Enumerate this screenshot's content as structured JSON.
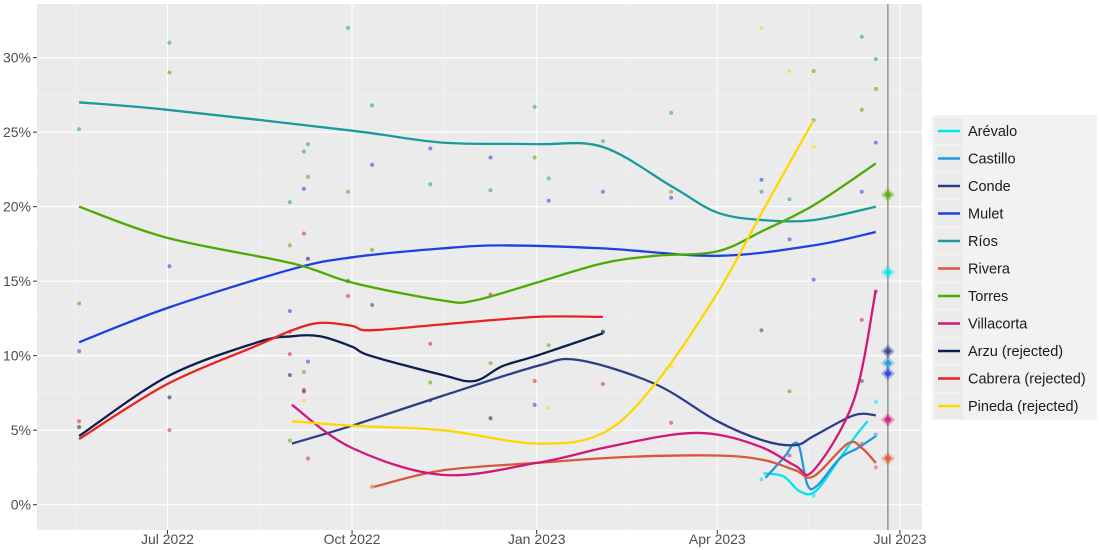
{
  "chart_data": {
    "type": "line",
    "title": "",
    "xlabel": "",
    "ylabel": "",
    "xlim": [
      "2022-04-27",
      "2023-07-12"
    ],
    "ylim": [
      -1.7,
      33.6
    ],
    "x_ticks": [
      {
        "date": "2022-07-01",
        "label": "Jul 2022"
      },
      {
        "date": "2022-10-01",
        "label": "Oct 2022"
      },
      {
        "date": "2023-01-01",
        "label": "Jan 2023"
      },
      {
        "date": "2023-04-01",
        "label": "Apr 2023"
      },
      {
        "date": "2023-07-01",
        "label": "Jul 2023"
      }
    ],
    "y_ticks": [
      {
        "value": 0,
        "label": "0%"
      },
      {
        "value": 5,
        "label": "5%"
      },
      {
        "value": 10,
        "label": "10%"
      },
      {
        "value": 15,
        "label": "15%"
      },
      {
        "value": 20,
        "label": "20%"
      },
      {
        "value": 25,
        "label": "25%"
      },
      {
        "value": 30,
        "label": "30%"
      }
    ],
    "grid": true,
    "background": "#ebebeb",
    "legend_position": "right",
    "vertical_line_date": "2023-06-25",
    "series": [
      {
        "name": "Arévalo",
        "color": "#00e5ee",
        "trend": [
          [
            "2023-04-24",
            2.1
          ],
          [
            "2023-05-04",
            1.9
          ],
          [
            "2023-05-12",
            0.9
          ],
          [
            "2023-05-20",
            0.9
          ],
          [
            "2023-06-01",
            3.1
          ],
          [
            "2023-06-10",
            4.8
          ],
          [
            "2023-06-15",
            5.6
          ]
        ],
        "points": [
          [
            "2023-04-23",
            1.7
          ],
          [
            "2023-05-19",
            0.6
          ],
          [
            "2023-06-19",
            6.9
          ]
        ],
        "result": 15.6
      },
      {
        "name": "Castillo",
        "color": "#1e9ae0",
        "trend": [
          [
            "2023-04-25",
            1.8
          ],
          [
            "2023-05-05",
            3.3
          ],
          [
            "2023-05-09",
            4.1
          ],
          [
            "2023-05-12",
            3.8
          ],
          [
            "2023-05-16",
            1.3
          ],
          [
            "2023-05-21",
            1.3
          ],
          [
            "2023-06-01",
            3.1
          ],
          [
            "2023-06-10",
            3.8
          ],
          [
            "2023-06-19",
            4.6
          ]
        ],
        "points": [
          [
            "2023-06-19",
            4.7
          ]
        ],
        "result": 9.5
      },
      {
        "name": "Conde",
        "color": "#2e3d8a",
        "trend": [
          [
            "2022-09-01",
            4.1
          ],
          [
            "2022-10-01",
            5.3
          ],
          [
            "2022-11-15",
            7.3
          ],
          [
            "2023-01-01",
            9.3
          ],
          [
            "2023-01-22",
            9.7
          ],
          [
            "2023-03-01",
            8.1
          ],
          [
            "2023-04-01",
            5.6
          ],
          [
            "2023-04-24",
            4.3
          ],
          [
            "2023-05-10",
            4.0
          ],
          [
            "2023-05-19",
            4.6
          ],
          [
            "2023-06-08",
            6.0
          ],
          [
            "2023-06-19",
            6.0
          ]
        ],
        "points": [
          [
            "2022-10-11",
            13.4
          ],
          [
            "2022-11-09",
            7.0
          ],
          [
            "2023-04-23",
            11.7
          ],
          [
            "2023-06-12",
            8.3
          ]
        ],
        "result": 10.3
      },
      {
        "name": "Mulet",
        "color": "#1f3fe0",
        "trend": [
          [
            "2022-05-18",
            10.9
          ],
          [
            "2022-07-01",
            13.2
          ],
          [
            "2022-09-01",
            15.8
          ],
          [
            "2022-10-01",
            16.6
          ],
          [
            "2022-11-15",
            17.2
          ],
          [
            "2022-12-15",
            17.4
          ],
          [
            "2023-02-03",
            17.2
          ],
          [
            "2023-04-01",
            16.7
          ],
          [
            "2023-05-19",
            17.4
          ],
          [
            "2023-06-19",
            18.3
          ]
        ],
        "points": [
          [
            "2022-05-18",
            10.3
          ],
          [
            "2022-07-02",
            16.0
          ],
          [
            "2022-08-31",
            13.0
          ],
          [
            "2022-09-07",
            21.2
          ],
          [
            "2022-09-09",
            9.6
          ],
          [
            "2022-10-11",
            22.8
          ],
          [
            "2022-11-09",
            23.9
          ],
          [
            "2022-12-09",
            23.3
          ],
          [
            "2022-12-31",
            6.7
          ],
          [
            "2023-01-07",
            20.4
          ],
          [
            "2023-02-03",
            21.0
          ],
          [
            "2023-03-09",
            20.6
          ],
          [
            "2023-04-23",
            21.8
          ],
          [
            "2023-05-07",
            17.8
          ],
          [
            "2023-05-19",
            15.1
          ],
          [
            "2023-06-12",
            21.0
          ],
          [
            "2023-06-19",
            24.3
          ]
        ],
        "result": 8.8
      },
      {
        "name": "Ríos",
        "color": "#1a9a9a",
        "trend": [
          [
            "2022-05-18",
            27.0
          ],
          [
            "2022-07-01",
            26.5
          ],
          [
            "2022-10-01",
            25.1
          ],
          [
            "2022-11-15",
            24.3
          ],
          [
            "2023-01-01",
            24.2
          ],
          [
            "2023-02-03",
            24.0
          ],
          [
            "2023-03-10",
            21.3
          ],
          [
            "2023-04-01",
            19.6
          ],
          [
            "2023-04-24",
            19.1
          ],
          [
            "2023-05-19",
            19.1
          ],
          [
            "2023-06-19",
            20.0
          ]
        ],
        "points": [
          [
            "2022-05-18",
            25.2
          ],
          [
            "2022-07-02",
            31.0
          ],
          [
            "2022-08-31",
            20.3
          ],
          [
            "2022-09-07",
            23.7
          ],
          [
            "2022-09-09",
            24.2
          ],
          [
            "2022-09-29",
            32.0
          ],
          [
            "2022-10-11",
            26.8
          ],
          [
            "2022-11-09",
            21.5
          ],
          [
            "2022-12-09",
            21.1
          ],
          [
            "2022-12-31",
            26.7
          ],
          [
            "2023-01-07",
            21.9
          ],
          [
            "2023-02-03",
            24.4
          ],
          [
            "2023-03-09",
            26.3
          ],
          [
            "2023-04-23",
            21.0
          ],
          [
            "2023-05-07",
            20.5
          ],
          [
            "2023-05-19",
            25.8
          ],
          [
            "2023-06-12",
            31.4
          ],
          [
            "2023-06-19",
            29.9
          ]
        ]
      },
      {
        "name": "Rivera",
        "color": "#d9573a",
        "trend": [
          [
            "2022-10-12",
            1.2
          ],
          [
            "2022-11-15",
            2.3
          ],
          [
            "2023-01-01",
            2.8
          ],
          [
            "2023-02-15",
            3.2
          ],
          [
            "2023-04-01",
            3.3
          ],
          [
            "2023-04-24",
            3.0
          ],
          [
            "2023-05-10",
            2.3
          ],
          [
            "2023-05-19",
            1.9
          ],
          [
            "2023-06-05",
            4.1
          ],
          [
            "2023-06-12",
            3.8
          ],
          [
            "2023-06-19",
            2.8
          ]
        ],
        "points": [
          [
            "2022-10-11",
            1.2
          ],
          [
            "2023-06-12",
            4.1
          ],
          [
            "2023-06-19",
            2.5
          ]
        ],
        "result": 3.1
      },
      {
        "name": "Torres",
        "color": "#4daa00",
        "trend": [
          [
            "2022-05-18",
            20.0
          ],
          [
            "2022-07-01",
            17.9
          ],
          [
            "2022-09-01",
            16.2
          ],
          [
            "2022-10-01",
            14.9
          ],
          [
            "2022-11-15",
            13.7
          ],
          [
            "2022-12-01",
            13.7
          ],
          [
            "2023-01-01",
            14.9
          ],
          [
            "2023-02-03",
            16.2
          ],
          [
            "2023-03-01",
            16.7
          ],
          [
            "2023-04-01",
            17.0
          ],
          [
            "2023-04-24",
            18.4
          ],
          [
            "2023-05-19",
            20.1
          ],
          [
            "2023-06-19",
            22.9
          ]
        ],
        "points": [
          [
            "2022-05-18",
            13.5
          ],
          [
            "2022-07-02",
            29.0
          ],
          [
            "2022-08-31",
            17.4
          ],
          [
            "2022-08-31",
            4.3
          ],
          [
            "2022-09-07",
            8.9
          ],
          [
            "2022-09-09",
            22.0
          ],
          [
            "2022-09-29",
            21.0
          ],
          [
            "2022-10-11",
            17.1
          ],
          [
            "2022-11-09",
            8.2
          ],
          [
            "2022-12-09",
            9.5
          ],
          [
            "2022-12-31",
            23.3
          ],
          [
            "2023-01-07",
            10.7
          ],
          [
            "2023-02-03",
            11.6
          ],
          [
            "2023-03-09",
            21.0
          ],
          [
            "2023-05-07",
            7.6
          ],
          [
            "2023-05-19",
            29.1
          ],
          [
            "2023-06-12",
            26.5
          ],
          [
            "2023-06-19",
            27.9
          ]
        ],
        "result": 20.8
      },
      {
        "name": "Villacorta",
        "color": "#d0177a",
        "trend": [
          [
            "2022-09-01",
            6.7
          ],
          [
            "2022-10-01",
            3.8
          ],
          [
            "2022-11-15",
            2.0
          ],
          [
            "2023-01-01",
            2.8
          ],
          [
            "2023-02-03",
            3.8
          ],
          [
            "2023-03-10",
            4.7
          ],
          [
            "2023-04-01",
            4.7
          ],
          [
            "2023-04-24",
            3.8
          ],
          [
            "2023-05-10",
            2.6
          ],
          [
            "2023-05-19",
            2.3
          ],
          [
            "2023-06-08",
            7.0
          ],
          [
            "2023-06-19",
            14.4
          ]
        ],
        "points": [
          [
            "2022-08-31",
            10.1
          ],
          [
            "2022-09-09",
            3.1
          ],
          [
            "2023-03-09",
            5.5
          ],
          [
            "2023-05-07",
            3.3
          ],
          [
            "2023-06-12",
            12.4
          ],
          [
            "2023-06-19",
            14.3
          ]
        ],
        "result": 5.7
      },
      {
        "name": "Arzu (rejected)",
        "color": "#0d1f4f",
        "trend": [
          [
            "2022-05-18",
            4.6
          ],
          [
            "2022-07-01",
            8.6
          ],
          [
            "2022-08-15",
            10.9
          ],
          [
            "2022-09-01",
            11.3
          ],
          [
            "2022-09-15",
            11.3
          ],
          [
            "2022-10-01",
            10.6
          ],
          [
            "2022-10-10",
            10.0
          ],
          [
            "2022-11-15",
            8.7
          ],
          [
            "2022-12-01",
            8.3
          ],
          [
            "2022-12-15",
            9.3
          ],
          [
            "2023-01-01",
            10.0
          ],
          [
            "2023-02-03",
            11.5
          ]
        ],
        "points": [
          [
            "2022-05-18",
            5.2
          ],
          [
            "2022-07-02",
            7.2
          ],
          [
            "2022-08-31",
            8.7
          ],
          [
            "2022-09-07",
            7.6
          ],
          [
            "2022-09-09",
            16.5
          ],
          [
            "2022-09-29",
            15.0
          ],
          [
            "2022-12-09",
            5.8
          ],
          [
            "2023-02-03",
            11.6
          ]
        ]
      },
      {
        "name": "Cabrera (rejected)",
        "color": "#e8221e",
        "trend": [
          [
            "2022-05-18",
            4.4
          ],
          [
            "2022-07-01",
            8.1
          ],
          [
            "2022-08-15",
            10.7
          ],
          [
            "2022-09-01",
            11.7
          ],
          [
            "2022-09-15",
            12.2
          ],
          [
            "2022-10-01",
            12.0
          ],
          [
            "2022-10-10",
            11.7
          ],
          [
            "2022-11-15",
            12.1
          ],
          [
            "2023-01-01",
            12.6
          ],
          [
            "2023-02-03",
            12.6
          ]
        ],
        "points": [
          [
            "2022-05-18",
            5.6
          ],
          [
            "2022-07-02",
            5.0
          ],
          [
            "2022-08-31",
            11.6
          ],
          [
            "2022-09-07",
            18.2
          ],
          [
            "2022-09-07",
            7.7
          ],
          [
            "2022-09-29",
            14.0
          ],
          [
            "2022-11-09",
            10.8
          ],
          [
            "2022-12-09",
            14.1
          ],
          [
            "2022-12-31",
            8.3
          ],
          [
            "2023-02-03",
            8.1
          ]
        ]
      },
      {
        "name": "Pineda (rejected)",
        "color": "#ffd700",
        "trend": [
          [
            "2022-09-01",
            5.6
          ],
          [
            "2022-10-01",
            5.3
          ],
          [
            "2022-11-15",
            5.0
          ],
          [
            "2023-01-01",
            4.1
          ],
          [
            "2023-02-03",
            4.8
          ],
          [
            "2023-03-01",
            8.1
          ],
          [
            "2023-04-01",
            14.2
          ],
          [
            "2023-04-24",
            19.8
          ],
          [
            "2023-05-19",
            25.8
          ]
        ],
        "points": [
          [
            "2022-09-07",
            7.0
          ],
          [
            "2023-01-07",
            6.5
          ],
          [
            "2023-03-09",
            9.3
          ],
          [
            "2023-04-23",
            32.0
          ],
          [
            "2023-05-07",
            29.1
          ],
          [
            "2023-05-19",
            24.0
          ]
        ]
      }
    ]
  }
}
